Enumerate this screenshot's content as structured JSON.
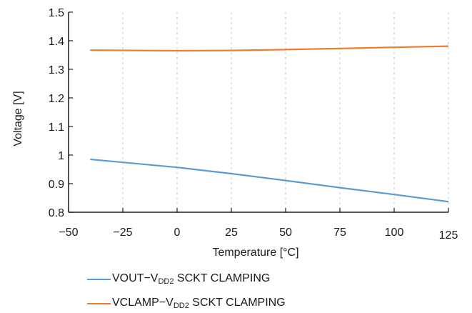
{
  "chart_data": {
    "type": "line",
    "xlabel": "Temperature [°C]",
    "ylabel": "Voltage [V]",
    "xlim": [
      -50,
      125
    ],
    "ylim": [
      0.8,
      1.5
    ],
    "xticks": [
      -50,
      -25,
      0,
      25,
      50,
      75,
      100,
      125
    ],
    "xtick_labels": [
      "−50",
      "−25",
      "0",
      "25",
      "50",
      "75",
      "100",
      "125"
    ],
    "yticks": [
      0.8,
      0.9,
      1,
      1.1,
      1.2,
      1.3,
      1.4,
      1.5
    ],
    "ytick_labels": [
      "0.8",
      "0.9",
      "1",
      "1.1",
      "1.2",
      "1.3",
      "1.4",
      "1.5"
    ],
    "grid": "vertical dashed",
    "legend_position": "bottom",
    "series": [
      {
        "name": "VOUT−VDD2 SCKT CLAMPING",
        "label_parts": [
          "VOUT−V",
          "DD2",
          " SCKT CLAMPING"
        ],
        "color": "#5b9bd5",
        "x": [
          -40,
          0,
          25,
          50,
          75,
          100,
          125
        ],
        "values": [
          0.985,
          0.957,
          0.935,
          0.911,
          0.886,
          0.862,
          0.837
        ]
      },
      {
        "name": "VCLAMP−VDD2 SCKT CLAMPING",
        "label_parts": [
          "VCLAMP−V",
          "DD2",
          " SCKT CLAMPING"
        ],
        "color": "#ed7d31",
        "x": [
          -40,
          0,
          25,
          50,
          75,
          100,
          125
        ],
        "values": [
          1.367,
          1.365,
          1.366,
          1.369,
          1.373,
          1.377,
          1.381
        ]
      }
    ]
  }
}
